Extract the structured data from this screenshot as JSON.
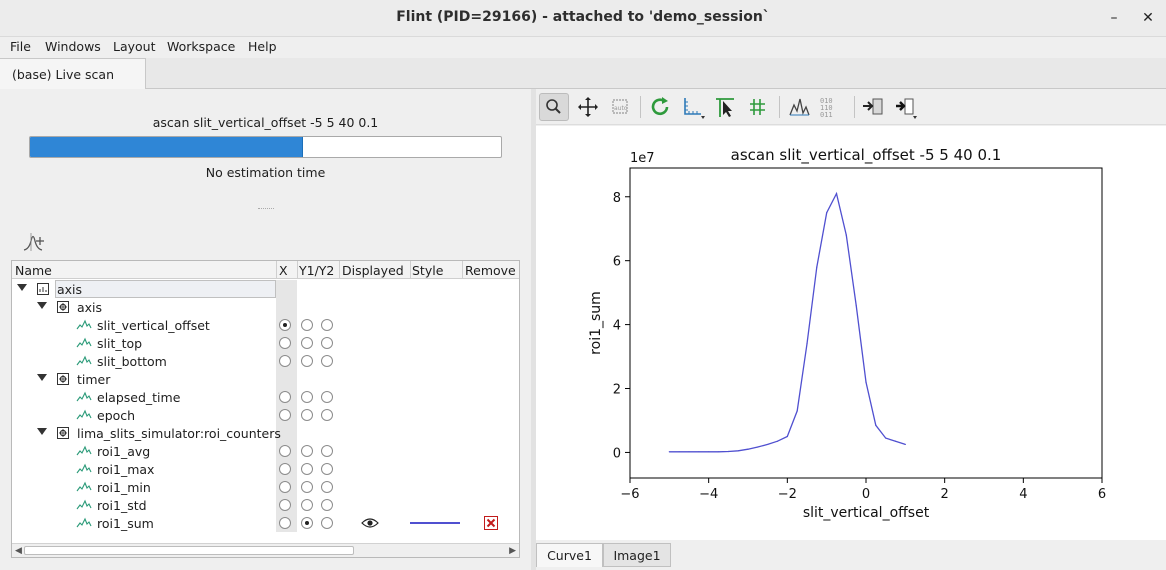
{
  "window": {
    "title": "Flint (PID=29166) - attached to 'demo_session`",
    "minimize": "–",
    "close": "✕"
  },
  "menu": [
    "File",
    "Windows",
    "Layout",
    "Workspace",
    "Help"
  ],
  "tabs": {
    "active": "(base) Live scan"
  },
  "scan": {
    "title": "ascan slit_vertical_offset -5 5 40 0.1",
    "progress": 0.58,
    "estimation": "No estimation time"
  },
  "tree": {
    "columns": [
      "Name",
      "X",
      "Y1/Y2",
      "Displayed",
      "Style",
      "Remove"
    ],
    "rows": [
      {
        "label": "axis",
        "type": "master",
        "indent": 0
      },
      {
        "label": "axis",
        "type": "group",
        "indent": 1
      },
      {
        "label": "slit_vertical_offset",
        "type": "channel",
        "x": true,
        "y1": false,
        "y2": false
      },
      {
        "label": "slit_top",
        "type": "channel",
        "x": false,
        "y1": false,
        "y2": false
      },
      {
        "label": "slit_bottom",
        "type": "channel",
        "x": false,
        "y1": false,
        "y2": false
      },
      {
        "label": "timer",
        "type": "group",
        "indent": 1
      },
      {
        "label": "elapsed_time",
        "type": "channel",
        "x": false,
        "y1": false,
        "y2": false
      },
      {
        "label": "epoch",
        "type": "channel",
        "x": false,
        "y1": false,
        "y2": false
      },
      {
        "label": "lima_slits_simulator:roi_counters",
        "type": "group",
        "indent": 1
      },
      {
        "label": "roi1_avg",
        "type": "channel",
        "x": false,
        "y1": false,
        "y2": false
      },
      {
        "label": "roi1_max",
        "type": "channel",
        "x": false,
        "y1": false,
        "y2": false
      },
      {
        "label": "roi1_min",
        "type": "channel",
        "x": false,
        "y1": false,
        "y2": false
      },
      {
        "label": "roi1_std",
        "type": "channel",
        "x": false,
        "y1": false,
        "y2": false
      },
      {
        "label": "roi1_sum",
        "type": "channel",
        "x": false,
        "y1": true,
        "y2": false,
        "displayed": true
      }
    ]
  },
  "toolbar": {
    "buttons": [
      "zoom-mode",
      "pan-mode",
      "autoscale",
      "reset-zoom",
      "axis-options",
      "crosshair",
      "grid",
      "curve-style",
      "data-values",
      "export",
      "open-in"
    ]
  },
  "plot_tabs": [
    "Curve1",
    "Image1"
  ],
  "chart_data": {
    "type": "line",
    "title": "ascan slit_vertical_offset -5 5 40 0.1",
    "xlabel": "slit_vertical_offset",
    "ylabel": "roi1_sum",
    "y_scale_label": "1e7",
    "xlim": [
      -6,
      6
    ],
    "ylim": [
      -0.8,
      8.9
    ],
    "x_ticks": [
      -6,
      -4,
      -2,
      0,
      2,
      4,
      6
    ],
    "x_tick_labels": [
      "−6",
      "−4",
      "−2",
      "0",
      "2",
      "4",
      "6"
    ],
    "y_ticks": [
      0,
      2,
      4,
      6,
      8
    ],
    "y_tick_labels": [
      "0",
      "2",
      "4",
      "6",
      "8"
    ],
    "series": [
      {
        "color": "#5050d0",
        "x": [
          -5.0,
          -4.75,
          -4.5,
          -4.25,
          -4.0,
          -3.75,
          -3.5,
          -3.25,
          -3.0,
          -2.75,
          -2.5,
          -2.25,
          -2.0,
          -1.75,
          -1.5,
          -1.25,
          -1.0,
          -0.75,
          -0.5,
          -0.25,
          0.0,
          0.25,
          0.5,
          0.75,
          1.0
        ],
        "y": [
          0.02,
          0.02,
          0.02,
          0.02,
          0.02,
          0.02,
          0.03,
          0.05,
          0.1,
          0.17,
          0.25,
          0.35,
          0.5,
          1.3,
          3.4,
          5.8,
          7.5,
          8.1,
          6.8,
          4.6,
          2.2,
          0.85,
          0.45,
          0.35,
          0.25
        ]
      }
    ]
  }
}
